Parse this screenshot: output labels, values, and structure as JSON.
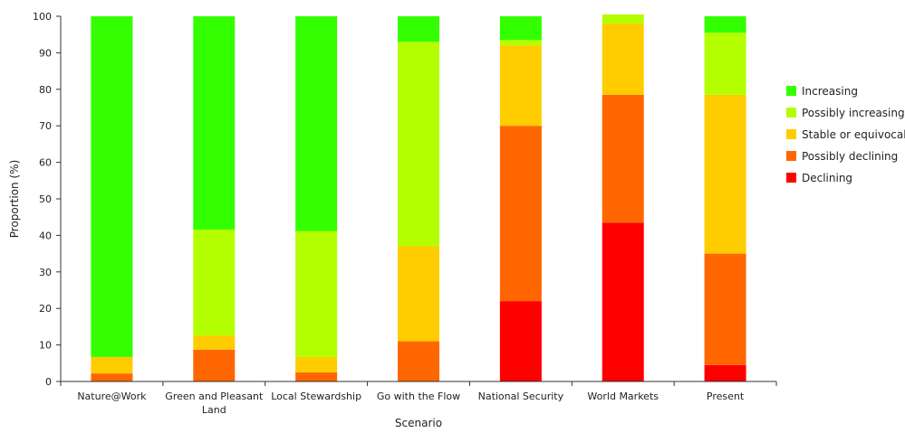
{
  "chart_data": {
    "type": "bar",
    "stacked": true,
    "title": "",
    "xlabel": "Scenario",
    "ylabel": "Proportion (%)",
    "ylim": [
      0,
      100
    ],
    "yticks": [
      0,
      10,
      20,
      30,
      40,
      50,
      60,
      70,
      80,
      90,
      100
    ],
    "grid": false,
    "legend_position": "right",
    "categories": [
      [
        "Nature@Work"
      ],
      [
        "Green and Pleasant",
        "Land"
      ],
      [
        "Local Stewardship"
      ],
      [
        "Go with the Flow"
      ],
      [
        "National Security"
      ],
      [
        "World Markets"
      ],
      [
        "Present"
      ]
    ],
    "series": [
      {
        "name": "Declining",
        "color": "#ff0000",
        "values": [
          0,
          0,
          0,
          0,
          22,
          43.5,
          4.5
        ]
      },
      {
        "name": "Possibly declining",
        "color": "#ff6600",
        "values": [
          2.2,
          8.7,
          2.5,
          11,
          48,
          35,
          30.5
        ]
      },
      {
        "name": "Stable or equivocal",
        "color": "#ffcc00",
        "values": [
          4.5,
          3.9,
          4.2,
          26,
          22,
          19.5,
          43.5
        ]
      },
      {
        "name": "Possibly increasing",
        "color": "#b3ff00",
        "values": [
          0,
          29,
          34.5,
          56,
          1.5,
          2.5,
          17
        ]
      },
      {
        "name": "Increasing",
        "color": "#33ff00",
        "values": [
          93.3,
          58.4,
          58.8,
          7,
          6.5,
          0,
          4.5
        ]
      }
    ],
    "legend_order": [
      "Increasing",
      "Possibly increasing",
      "Stable or equivocal",
      "Possibly declining",
      "Declining"
    ]
  }
}
